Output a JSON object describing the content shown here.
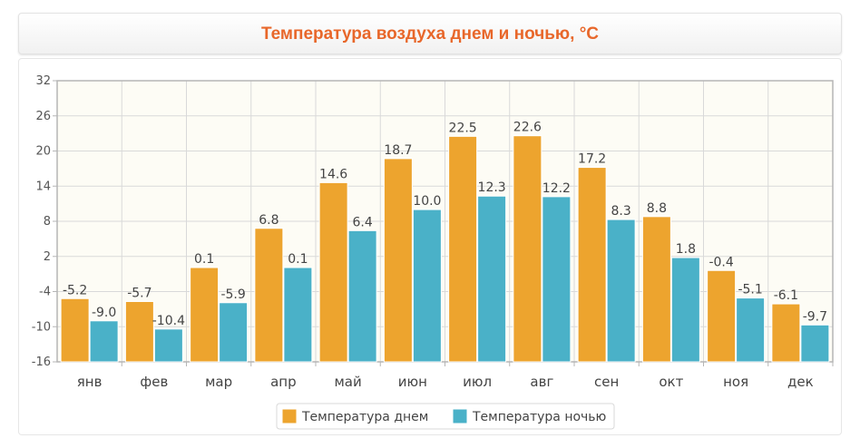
{
  "title": "Температура воздуха днем и ночью, °C",
  "colors": {
    "day": "#eda42e",
    "night": "#4ab1c8",
    "title": "#e8672a",
    "plot_bg": "#fdfcf5",
    "grid": "#d9d9d9",
    "axis": "#b5b5b5"
  },
  "chart_data": {
    "type": "bar",
    "categories": [
      "янв",
      "фев",
      "мар",
      "апр",
      "май",
      "июн",
      "июл",
      "авг",
      "сен",
      "окт",
      "ноя",
      "дек"
    ],
    "series": [
      {
        "name": "Температура днем",
        "values": [
          -5.2,
          -5.7,
          0.1,
          6.8,
          14.6,
          18.7,
          22.5,
          22.6,
          17.2,
          8.8,
          -0.4,
          -6.1
        ],
        "labels": [
          "-5.2",
          "-5.7",
          "0.1",
          "6.8",
          "14.6",
          "18.7",
          "22.5",
          "22.6",
          "17.2",
          "8.8",
          "-0.4",
          "-6.1"
        ]
      },
      {
        "name": "Температура ночью",
        "values": [
          -9.0,
          -10.4,
          -5.9,
          0.1,
          6.4,
          10.0,
          12.3,
          12.2,
          8.3,
          1.8,
          -5.1,
          -9.7
        ],
        "labels": [
          "-9.0",
          "-10.4",
          "-5.9",
          "0.1",
          "6.4",
          "10.0",
          "12.3",
          "12.2",
          "8.3",
          "1.8",
          "-5.1",
          "-9.7"
        ]
      }
    ],
    "ylim": [
      -16,
      32
    ],
    "yticks": [
      32,
      26,
      20,
      14,
      8,
      2,
      -4,
      -10,
      -16
    ],
    "grid": true,
    "legend": "bottom-center"
  }
}
